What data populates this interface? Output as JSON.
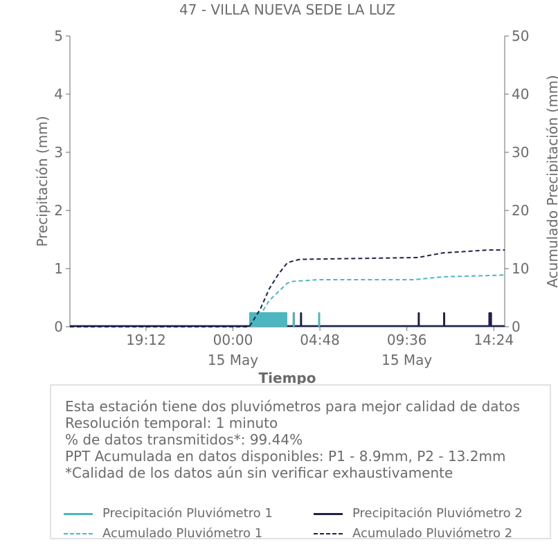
{
  "chart_data": {
    "type": "line",
    "title": "47 - VILLA NUEVA SEDE LA LUZ",
    "xlabel": "Tiempo",
    "ylabel_left": "Precipitación (mm)",
    "ylabel_right": "Acumulado Precipitación (mm)",
    "ylim_left": [
      0,
      5
    ],
    "ylim_right": [
      0,
      50
    ],
    "yticks_left": [
      "0",
      "1",
      "2",
      "3",
      "4",
      "5"
    ],
    "yticks_right": [
      "0",
      "10",
      "20",
      "30",
      "40",
      "50"
    ],
    "x_range_hours": [
      -9.0,
      15.0
    ],
    "xticks": [
      {
        "hour": -4.8,
        "label": "19:12",
        "sub": ""
      },
      {
        "hour": 0.0,
        "label": "00:00",
        "sub": "15 May"
      },
      {
        "hour": 4.8,
        "label": "04:48",
        "sub": ""
      },
      {
        "hour": 9.6,
        "label": "09:36",
        "sub": "15 May"
      },
      {
        "hour": 14.4,
        "label": "14:24",
        "sub": ""
      }
    ],
    "grid": false,
    "series": [
      {
        "name": "Precipitación Pluviómetro 1",
        "axis": "left",
        "style": "solid",
        "color": "#4db6c0",
        "bars": [
          {
            "from": 0.9,
            "to": 3.0,
            "value": 0.25
          },
          {
            "from": 3.3,
            "to": 3.35,
            "value": 0.25
          },
          {
            "from": 4.7,
            "to": 4.75,
            "value": 0.25
          }
        ]
      },
      {
        "name": "Precipitación Pluviómetro 2",
        "axis": "left",
        "style": "solid",
        "color": "#1f2149",
        "bars": [
          {
            "from": 0.9,
            "to": 3.0,
            "value": 0.25
          },
          {
            "from": 3.3,
            "to": 3.35,
            "value": 0.25
          },
          {
            "from": 3.7,
            "to": 3.75,
            "value": 0.25
          },
          {
            "from": 10.2,
            "to": 10.25,
            "value": 0.25
          },
          {
            "from": 11.6,
            "to": 11.7,
            "value": 0.25
          },
          {
            "from": 14.1,
            "to": 14.3,
            "value": 0.25
          }
        ]
      },
      {
        "name": "Acumulado Pluviómetro 1",
        "axis": "right",
        "style": "dashed",
        "color": "#4db6c0",
        "x": [
          -9.0,
          0.9,
          1.5,
          2.0,
          2.5,
          3.0,
          3.3,
          4.7,
          10.0,
          11.6,
          14.0,
          15.0
        ],
        "y": [
          0,
          0,
          2.0,
          4.5,
          6.0,
          7.5,
          7.8,
          8.1,
          8.1,
          8.6,
          8.8,
          8.9
        ]
      },
      {
        "name": "Acumulado Pluviómetro 2",
        "axis": "right",
        "style": "dashed",
        "color": "#1f2149",
        "x": [
          -9.0,
          0.9,
          1.5,
          2.0,
          2.5,
          3.0,
          3.3,
          3.7,
          10.2,
          11.6,
          14.1,
          15.0
        ],
        "y": [
          0,
          0,
          3.0,
          6.5,
          9.0,
          11.0,
          11.3,
          11.6,
          11.9,
          12.7,
          13.2,
          13.2
        ]
      }
    ]
  },
  "info": {
    "line1": "Esta estación tiene dos pluviómetros para mejor calidad de datos",
    "line2": "Resolución temporal: 1 minuto",
    "line3": "% de datos transmitidos*: 99.44%",
    "line4": "PPT Acumulada en datos disponibles: P1 - 8.9mm, P2 - 13.2mm",
    "line5": "*Calidad de los datos aún sin verificar exhaustivamente"
  },
  "legend": {
    "p1": "Precipitación Pluviómetro 1",
    "p2": "Precipitación Pluviómetro 2",
    "a1": "Acumulado Pluviómetro 1",
    "a2": "Acumulado Pluviómetro 2"
  },
  "colors": {
    "pluvio1": "#4db6c0",
    "pluvio2": "#1f2149",
    "text": "#6b6b6b",
    "axis": "#6b6b6b"
  }
}
